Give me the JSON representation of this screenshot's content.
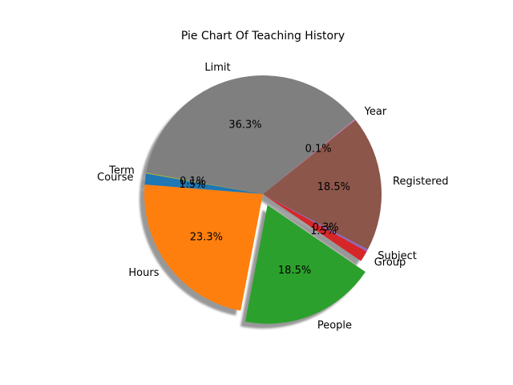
{
  "chart_data": {
    "type": "pie",
    "title": "Pie Chart Of Teaching History",
    "start_angle_deg": 170,
    "direction": "counterclockwise",
    "shadow": true,
    "slices": [
      {
        "label": "Course",
        "value": 1.5,
        "pct_text": "1.5%",
        "color": "#1f77b4",
        "explode": 0
      },
      {
        "label": "Hours",
        "value": 23.3,
        "pct_text": "23.3%",
        "color": "#ff7f0e",
        "explode": 0
      },
      {
        "label": "People",
        "value": 18.5,
        "pct_text": "18.5%",
        "color": "#2ca02c",
        "explode": 0.1
      },
      {
        "label": "Group",
        "value": 1.5,
        "pct_text": "1.5%",
        "color": "#d62728",
        "explode": 0
      },
      {
        "label": "Subject",
        "value": 0.3,
        "pct_text": "0.3%",
        "color": "#9467bd",
        "explode": 0
      },
      {
        "label": "Registered",
        "value": 18.5,
        "pct_text": "18.5%",
        "color": "#8c564b",
        "explode": 0
      },
      {
        "label": "Year",
        "value": 0.1,
        "pct_text": "0.1%",
        "color": "#e377c2",
        "explode": 0
      },
      {
        "label": "Limit",
        "value": 36.3,
        "pct_text": "36.3%",
        "color": "#7f7f7f",
        "explode": 0
      },
      {
        "label": "Term",
        "value": 0.1,
        "pct_text": "0.1%",
        "color": "#bcbd22",
        "explode": 0
      }
    ]
  }
}
